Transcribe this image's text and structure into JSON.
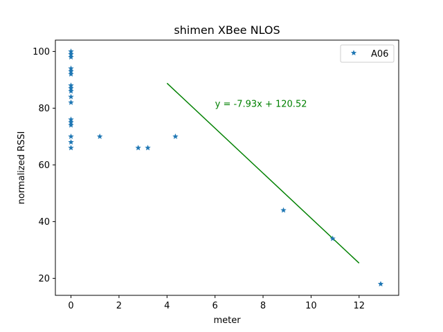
{
  "chart_data": {
    "type": "scatter",
    "title": "shimen XBee NLOS",
    "xlabel": "meter",
    "ylabel": "normalized RSSI",
    "xlim": [
      -0.65,
      13.65
    ],
    "ylim": [
      14,
      104
    ],
    "xticks": [
      0,
      2,
      4,
      6,
      8,
      10,
      12
    ],
    "yticks": [
      20,
      40,
      60,
      80,
      100
    ],
    "grid": false,
    "legend_position": "top-right",
    "series": [
      {
        "name": "A06",
        "color": "#1f77b4",
        "marker": "star",
        "points": [
          {
            "x": 0,
            "y": 100
          },
          {
            "x": 0,
            "y": 99
          },
          {
            "x": 0,
            "y": 98
          },
          {
            "x": 0,
            "y": 94
          },
          {
            "x": 0,
            "y": 93
          },
          {
            "x": 0,
            "y": 92
          },
          {
            "x": 0,
            "y": 88
          },
          {
            "x": 0,
            "y": 87
          },
          {
            "x": 0,
            "y": 86
          },
          {
            "x": 0,
            "y": 84
          },
          {
            "x": 0,
            "y": 82
          },
          {
            "x": 0,
            "y": 76
          },
          {
            "x": 0,
            "y": 75
          },
          {
            "x": 0,
            "y": 74
          },
          {
            "x": 0,
            "y": 70
          },
          {
            "x": 0,
            "y": 68
          },
          {
            "x": 0,
            "y": 66
          },
          {
            "x": 1.2,
            "y": 70
          },
          {
            "x": 2.8,
            "y": 66
          },
          {
            "x": 3.2,
            "y": 66
          },
          {
            "x": 4.35,
            "y": 70
          },
          {
            "x": 8.85,
            "y": 44
          },
          {
            "x": 10.9,
            "y": 34
          },
          {
            "x": 12.9,
            "y": 18
          }
        ]
      }
    ],
    "fit_line": {
      "color": "#008000",
      "slope": -7.93,
      "intercept": 120.52,
      "x_range": [
        4,
        12
      ]
    },
    "annotation": {
      "text": "y = -7.93x + 120.52",
      "x": 6,
      "y": 80.5,
      "color": "#008000"
    }
  }
}
